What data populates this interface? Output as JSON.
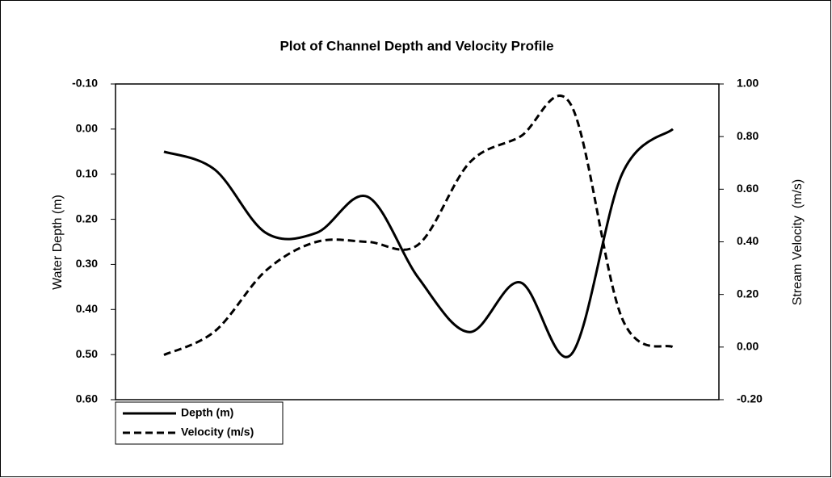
{
  "chart_data": {
    "type": "line",
    "title": "Plot of Channel Depth and Velocity Profile",
    "y_label": "Water Depth (m)",
    "y2_label": "Stream Velocity  (m/s)",
    "categories": [
      null,
      null,
      null,
      null,
      null,
      null,
      null,
      null,
      null,
      null,
      null
    ],
    "series": [
      {
        "name": "Depth (m)",
        "color": "#000000",
        "dash": "solid",
        "axis": "y",
        "values": [
          0.05,
          0.09,
          0.23,
          0.23,
          0.15,
          0.33,
          0.45,
          0.34,
          0.5,
          0.1,
          0.0
        ]
      },
      {
        "name": "Velocity (m/s)",
        "color": "#000000",
        "dash": "dashed",
        "axis": "y2",
        "values": [
          -0.03,
          0.06,
          0.29,
          0.4,
          0.4,
          0.39,
          0.7,
          0.8,
          0.92,
          0.11,
          0.0
        ]
      }
    ],
    "ylim": [
      -0.1,
      0.6
    ],
    "y_inverted": true,
    "yticks": [
      {
        "value": -0.1,
        "label": "-0.10"
      },
      {
        "value": 0,
        "label": "0.00"
      },
      {
        "value": 0.1,
        "label": "0.10"
      },
      {
        "value": 0.2,
        "label": "0.20"
      },
      {
        "value": 0.3,
        "label": "0.30"
      },
      {
        "value": 0.4,
        "label": "0.40"
      },
      {
        "value": 0.5,
        "label": "0.50"
      },
      {
        "value": 0.6,
        "label": "0.60"
      }
    ],
    "y2lim": [
      -0.2,
      1.0
    ],
    "y2ticks": [
      {
        "value": 1,
        "label": "1.00"
      },
      {
        "value": 0.8,
        "label": "0.80"
      },
      {
        "value": 0.6,
        "label": "0.60"
      },
      {
        "value": 0.4,
        "label": "0.40"
      },
      {
        "value": 0.2,
        "label": "0.20"
      },
      {
        "value": 0,
        "label": "0.00"
      },
      {
        "value": -0.2,
        "label": "-0.20"
      }
    ],
    "grid": false,
    "legend": "below-left"
  }
}
